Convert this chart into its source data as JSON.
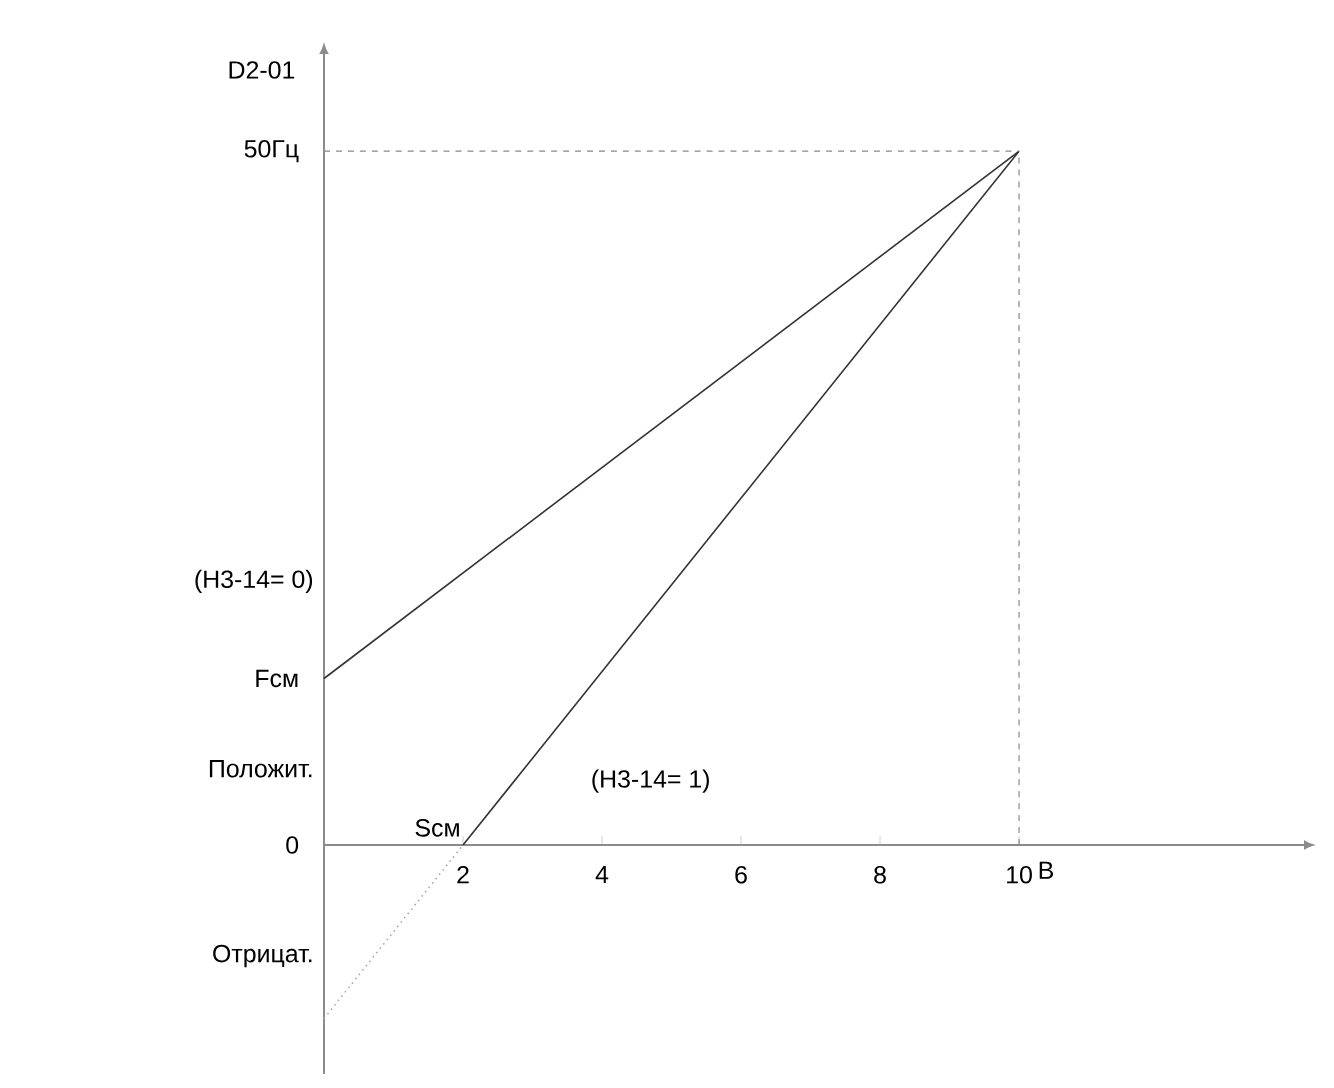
{
  "chart_data": {
    "type": "line",
    "xlabel": "B",
    "ylabel": "D2-01",
    "xlim": [
      0,
      14.1
    ],
    "ylim": [
      -16.5,
      57
    ],
    "xticks": [
      2,
      4,
      6,
      8,
      10
    ],
    "yticks": [
      0,
      {
        "value": 12,
        "label": "Fcм"
      },
      {
        "value": 50,
        "label": "50Гц"
      }
    ],
    "series": [
      {
        "color": "#333333",
        "line_style": "solid",
        "x": [
          0,
          10
        ],
        "values": [
          12,
          50
        ]
      },
      {
        "color": "#333333",
        "line_style": "solid",
        "x": [
          2,
          10
        ],
        "values": [
          0,
          50
        ]
      },
      {
        "color": "#aaaaaa",
        "line_style": "dotted",
        "x": [
          0,
          2
        ],
        "values": [
          -12.5,
          0
        ]
      }
    ],
    "ref_lines": [
      {
        "axis": "y",
        "value": 50,
        "color": "#888888",
        "line_style": "dashed"
      },
      {
        "axis": "x",
        "value": 10,
        "color": "#888888",
        "line_style": "dashed"
      }
    ],
    "annotations": [
      "(H3-14= 0)",
      "Положит.",
      "Отрицат.",
      {
        "text": "Scм",
        "x": 2,
        "y": 0
      },
      "(H3-14= 1)"
    ]
  }
}
